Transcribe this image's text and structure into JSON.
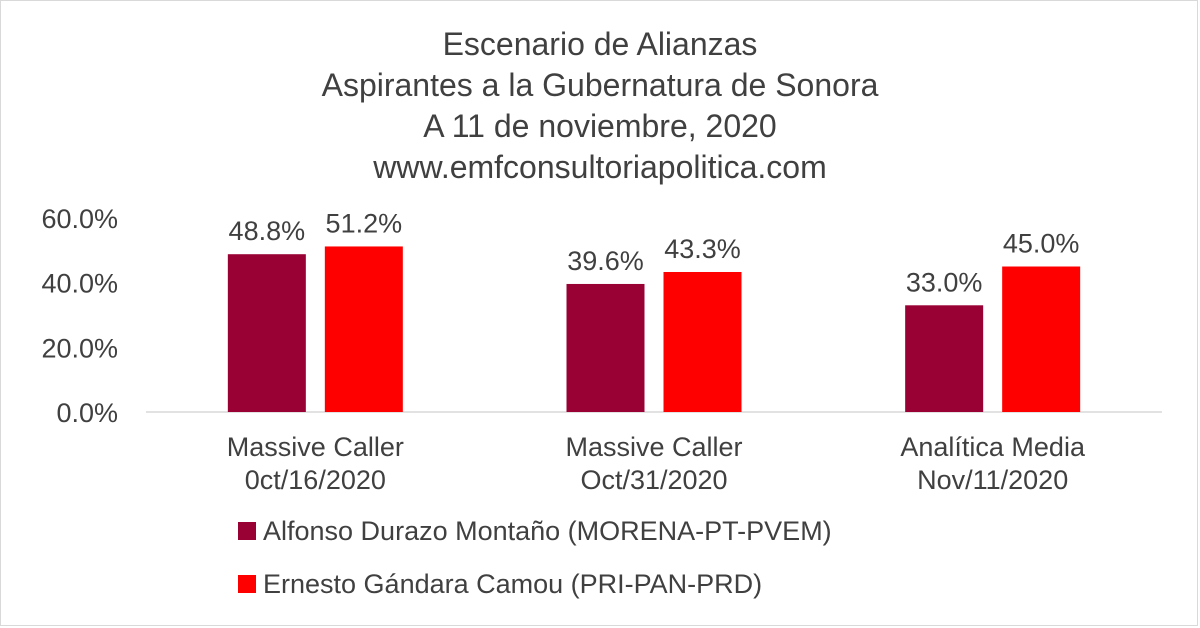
{
  "title_lines": [
    "Escenario de Alianzas",
    "Aspirantes a la Gubernatura de Sonora",
    "A 11 de noviembre, 2020",
    "www.emfconsultoriapolitica.com"
  ],
  "chart_data": {
    "type": "bar",
    "title": "Escenario de Alianzas / Aspirantes a la Gubernatura de Sonora / A 11 de noviembre, 2020 / www.emfconsultoriapolitica.com",
    "categories": [
      [
        "Massive Caller",
        "0ct/16/2020"
      ],
      [
        "Massive Caller",
        "Oct/31/2020"
      ],
      [
        "Analítica Media",
        "Nov/11/2020"
      ]
    ],
    "series": [
      {
        "name": "Alfonso Durazo Montaño (MORENA-PT-PVEM)",
        "color": "#990033",
        "values": [
          48.8,
          39.6,
          33.0
        ],
        "labels": [
          "48.8%",
          "39.6%",
          "33.0%"
        ]
      },
      {
        "name": "Ernesto Gándara Camou (PRI-PAN-PRD)",
        "color": "#ff0000",
        "values": [
          51.2,
          43.3,
          45.0
        ],
        "labels": [
          "51.2%",
          "43.3%",
          "45.0%"
        ]
      }
    ],
    "yticks": [
      0,
      20,
      40,
      60
    ],
    "ytick_labels": [
      "0.0%",
      "20.0%",
      "40.0%",
      "60.0%"
    ],
    "ylim": [
      0,
      60
    ],
    "grid": false,
    "legend_position": "bottom"
  }
}
